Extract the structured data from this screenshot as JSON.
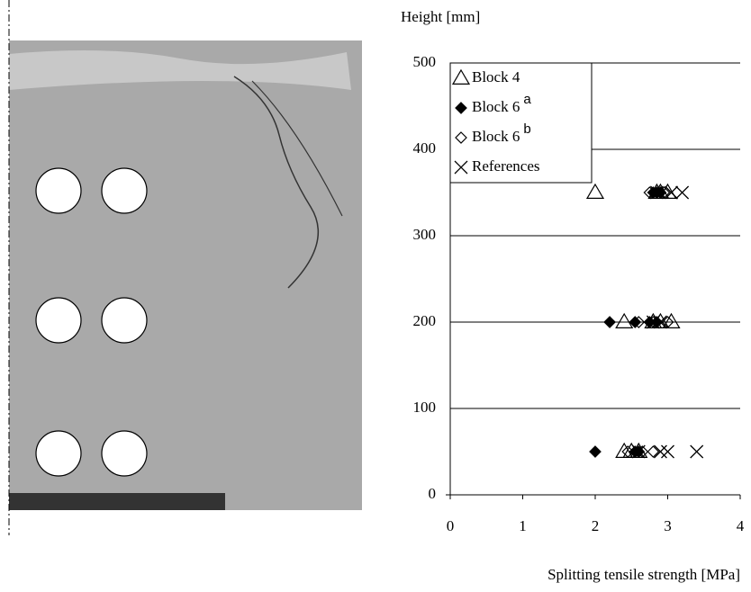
{
  "chart_data": {
    "type": "scatter",
    "xlabel": "Splitting tensile strength [MPa]",
    "ylabel": "Height [mm]",
    "xlim": [
      0,
      4
    ],
    "xticks": [
      0,
      1,
      2,
      3,
      4
    ],
    "ylim": [
      0,
      500
    ],
    "yticks": [
      0,
      100,
      200,
      300,
      400,
      500
    ],
    "grid": true,
    "legend": "upper left",
    "series": [
      {
        "name": "Block 4",
        "marker": "triangle",
        "color": "#000000",
        "x": [
          2.0,
          2.85,
          2.9,
          3.0,
          2.4,
          2.8,
          2.9,
          3.05,
          2.4,
          2.5,
          2.6
        ],
        "y": [
          350,
          350,
          350,
          350,
          200,
          200,
          200,
          200,
          50,
          50,
          50
        ]
      },
      {
        "name": "Block 6",
        "note": "a",
        "marker": "diamond-filled",
        "color": "#000000",
        "x": [
          2.8,
          2.85,
          2.9,
          2.2,
          2.55,
          2.75,
          2.85,
          2.0,
          2.55,
          2.6
        ],
        "y": [
          350,
          350,
          350,
          200,
          200,
          200,
          200,
          50,
          50,
          50
        ]
      },
      {
        "name": "Block 6",
        "note": "b",
        "marker": "diamond",
        "color": "#000000",
        "x": [
          2.75,
          2.95,
          2.6,
          2.8,
          3.0,
          2.45,
          2.65,
          2.8
        ],
        "y": [
          350,
          350,
          200,
          200,
          200,
          50,
          50,
          50
        ]
      },
      {
        "name": "References",
        "marker": "x",
        "color": "#000000",
        "x": [
          2.85,
          3.05,
          3.2,
          2.8,
          2.9,
          2.6,
          2.9,
          3.0,
          3.4
        ],
        "y": [
          350,
          350,
          350,
          200,
          200,
          50,
          50,
          50,
          50
        ]
      }
    ]
  }
}
